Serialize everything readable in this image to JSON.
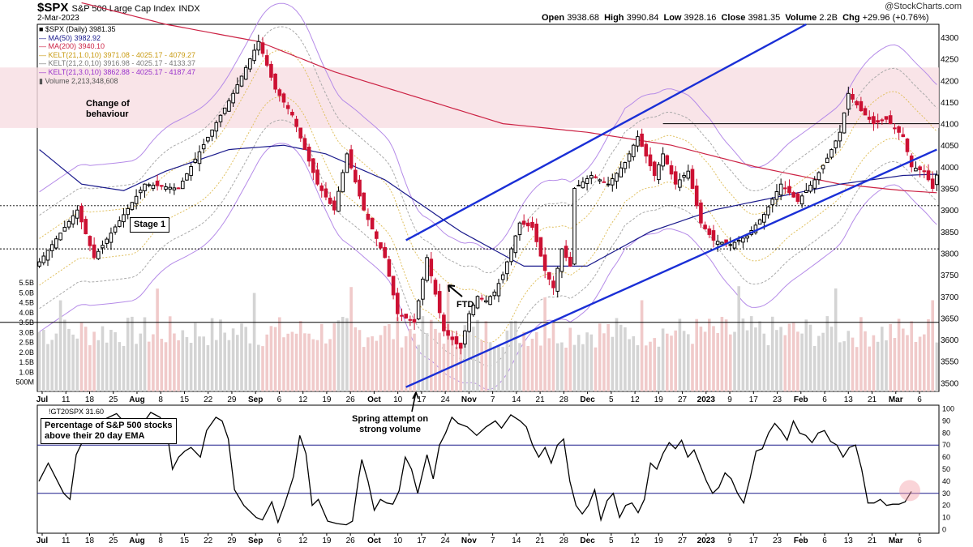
{
  "header": {
    "symbol": "$SPX",
    "name": "S&P 500 Large Cap Index",
    "exchange": "INDX",
    "date": "2-Mar-2023",
    "brand": "@StockCharts.com",
    "open_label": "Open",
    "open": "3938.68",
    "high_label": "High",
    "high": "3990.84",
    "low_label": "Low",
    "low": "3928.16",
    "close_label": "Close",
    "close": "3981.35",
    "volume_label": "Volume",
    "volume": "2.2B",
    "chg_label": "Chg",
    "chg": "+29.96 (+0.76%)"
  },
  "legend": [
    {
      "text": "$SPX (Daily) 3981.35",
      "color": "#000000"
    },
    {
      "text": "MA(50) 3982.92",
      "color": "#1a1a8c"
    },
    {
      "text": "MA(200) 3940.10",
      "color": "#cc2244"
    },
    {
      "text": "KELT(21,1.0,10) 3971.08 - 4025.17 - 4079.27",
      "color": "#d4a017"
    },
    {
      "text": "KELT(21,2.0,10) 3916.98 - 4025.17 - 4133.37",
      "color": "#888888"
    },
    {
      "text": "KELT(21,3.0,10) 3862.88 - 4025.17 - 4187.47",
      "color": "#9932cc"
    },
    {
      "text": "Volume 2,213,348,608",
      "color": "#555555"
    }
  ],
  "annotations": {
    "change_behaviour": "Change of\nbehaviour",
    "stage1": "Stage 1",
    "ftd": "FTD",
    "spring": "Spring attempt on\nstrong volume",
    "breadth_box": "Percentage of S&P 500 stocks\nabove their 20 day EMA"
  },
  "colors": {
    "up": "#000000",
    "down": "#cc1133",
    "ma50": "#1a1a8c",
    "ma200": "#cc2244",
    "channel": "#1a2fd6",
    "kelt1": "#e0c060",
    "kelt2": "#aaaaaa",
    "kelt3": "#b58be8",
    "zone": "#f7dde2",
    "vol_up": "#d4d4d4",
    "vol_down": "#f0caca"
  },
  "chart_data": [
    {
      "type": "candlestick",
      "title": "$SPX S&P 500 Large Cap Index",
      "y_axis_side": "right",
      "ylim": [
        3480,
        4330
      ],
      "yticks": [
        3500,
        3550,
        3600,
        3650,
        3700,
        3750,
        3800,
        3850,
        3900,
        3950,
        4000,
        4050,
        4100,
        4150,
        4200,
        4250,
        4300
      ],
      "volume_ticks": [
        "500M",
        "1.0B",
        "1.5B",
        "2.0B",
        "2.5B",
        "3.0B",
        "3.5B",
        "4.0B",
        "4.5B",
        "5.0B",
        "5.5B"
      ],
      "xticks": [
        "Jul",
        "11",
        "18",
        "25",
        "Aug",
        "8",
        "15",
        "22",
        "29",
        "Sep",
        "6",
        "12",
        "19",
        "26",
        "Oct",
        "10",
        "17",
        "24",
        "Nov",
        "7",
        "14",
        "21",
        "28",
        "Dec",
        "5",
        "12",
        "19",
        "27",
        "2023",
        "9",
        "17",
        "23",
        "Feb",
        "6",
        "13",
        "21",
        "Mar",
        "6"
      ],
      "horizontal_lines": [
        3810,
        4100,
        3910,
        3640
      ],
      "resistance_zone": [
        4090,
        4230
      ],
      "anchors": [
        {
          "x": 0,
          "y": 3780
        },
        {
          "x": 9,
          "y": 3900
        },
        {
          "x": 13,
          "y": 3790
        },
        {
          "x": 25,
          "y": 3960
        },
        {
          "x": 33,
          "y": 3950
        },
        {
          "x": 46,
          "y": 4170
        },
        {
          "x": 52,
          "y": 4290
        },
        {
          "x": 56,
          "y": 4180
        },
        {
          "x": 60,
          "y": 4120
        },
        {
          "x": 66,
          "y": 3960
        },
        {
          "x": 70,
          "y": 3900
        },
        {
          "x": 73,
          "y": 4030
        },
        {
          "x": 77,
          "y": 3900
        },
        {
          "x": 82,
          "y": 3790
        },
        {
          "x": 85,
          "y": 3660
        },
        {
          "x": 89,
          "y": 3640
        },
        {
          "x": 92,
          "y": 3790
        },
        {
          "x": 96,
          "y": 3620
        },
        {
          "x": 99,
          "y": 3590
        },
        {
          "x": 100,
          "y": 3580
        },
        {
          "x": 102,
          "y": 3660
        },
        {
          "x": 104,
          "y": 3700
        },
        {
          "x": 106,
          "y": 3690
        },
        {
          "x": 108,
          "y": 3710
        },
        {
          "x": 110,
          "y": 3750
        },
        {
          "x": 114,
          "y": 3870
        },
        {
          "x": 117,
          "y": 3860
        },
        {
          "x": 120,
          "y": 3760
        },
        {
          "x": 122,
          "y": 3720
        },
        {
          "x": 124,
          "y": 3810
        },
        {
          "x": 126,
          "y": 3770
        },
        {
          "x": 127,
          "y": 3950
        },
        {
          "x": 131,
          "y": 3980
        },
        {
          "x": 135,
          "y": 3960
        },
        {
          "x": 139,
          "y": 4010
        },
        {
          "x": 142,
          "y": 4070
        },
        {
          "x": 146,
          "y": 3980
        },
        {
          "x": 148,
          "y": 4030
        },
        {
          "x": 151,
          "y": 3960
        },
        {
          "x": 154,
          "y": 3990
        },
        {
          "x": 157,
          "y": 3870
        },
        {
          "x": 160,
          "y": 3830
        },
        {
          "x": 164,
          "y": 3820
        },
        {
          "x": 168,
          "y": 3840
        },
        {
          "x": 172,
          "y": 3890
        },
        {
          "x": 176,
          "y": 3960
        },
        {
          "x": 180,
          "y": 3920
        },
        {
          "x": 184,
          "y": 3970
        },
        {
          "x": 187,
          "y": 4020
        },
        {
          "x": 190,
          "y": 4080
        },
        {
          "x": 192,
          "y": 4170
        },
        {
          "x": 195,
          "y": 4130
        },
        {
          "x": 198,
          "y": 4100
        },
        {
          "x": 201,
          "y": 4110
        },
        {
          "x": 205,
          "y": 4070
        },
        {
          "x": 207,
          "y": 4000
        },
        {
          "x": 210,
          "y": 3990
        },
        {
          "x": 212,
          "y": 3950
        },
        {
          "x": 213,
          "y": 3981
        }
      ],
      "ma50_points": [
        {
          "x": 0,
          "y": 4040
        },
        {
          "x": 10,
          "y": 3960
        },
        {
          "x": 20,
          "y": 3945
        },
        {
          "x": 30,
          "y": 3990
        },
        {
          "x": 45,
          "y": 4040
        },
        {
          "x": 58,
          "y": 4050
        },
        {
          "x": 68,
          "y": 4030
        },
        {
          "x": 82,
          "y": 3970
        },
        {
          "x": 100,
          "y": 3850
        },
        {
          "x": 115,
          "y": 3770
        },
        {
          "x": 130,
          "y": 3770
        },
        {
          "x": 145,
          "y": 3850
        },
        {
          "x": 160,
          "y": 3900
        },
        {
          "x": 175,
          "y": 3930
        },
        {
          "x": 190,
          "y": 3960
        },
        {
          "x": 205,
          "y": 3980
        },
        {
          "x": 213,
          "y": 3983
        }
      ],
      "ma200_points": [
        {
          "x": 10,
          "y": 4380
        },
        {
          "x": 30,
          "y": 4330
        },
        {
          "x": 52,
          "y": 4290
        },
        {
          "x": 70,
          "y": 4220
        },
        {
          "x": 90,
          "y": 4160
        },
        {
          "x": 110,
          "y": 4100
        },
        {
          "x": 130,
          "y": 4080
        },
        {
          "x": 150,
          "y": 4050
        },
        {
          "x": 170,
          "y": 4000
        },
        {
          "x": 190,
          "y": 3960
        },
        {
          "x": 205,
          "y": 3945
        },
        {
          "x": 213,
          "y": 3940
        }
      ],
      "channel_lines": [
        {
          "from": {
            "x": 87,
            "y": 3830
          },
          "to": {
            "x": 182,
            "y": 4330
          }
        },
        {
          "from": {
            "x": 87,
            "y": 3490
          },
          "to": {
            "x": 213,
            "y": 4040
          }
        }
      ]
    },
    {
      "type": "line",
      "title": "!GT20SPX 31.60",
      "y_axis_side": "right",
      "ylim": [
        -3,
        103
      ],
      "yticks": [
        0,
        10,
        20,
        30,
        40,
        50,
        60,
        70,
        80,
        90,
        100
      ],
      "reference_lines": [
        70,
        30
      ],
      "last_value": 31.6,
      "points": [
        {
          "x": 0,
          "y": 40
        },
        {
          "x": 3,
          "y": 55
        },
        {
          "x": 6,
          "y": 40
        },
        {
          "x": 8,
          "y": 30
        },
        {
          "x": 10,
          "y": 25
        },
        {
          "x": 12,
          "y": 62
        },
        {
          "x": 15,
          "y": 78
        },
        {
          "x": 20,
          "y": 90
        },
        {
          "x": 25,
          "y": 96
        },
        {
          "x": 30,
          "y": 82
        },
        {
          "x": 33,
          "y": 86
        },
        {
          "x": 36,
          "y": 97
        },
        {
          "x": 39,
          "y": 93
        },
        {
          "x": 41,
          "y": 85
        },
        {
          "x": 43,
          "y": 50
        },
        {
          "x": 45,
          "y": 60
        },
        {
          "x": 47,
          "y": 65
        },
        {
          "x": 49,
          "y": 68
        },
        {
          "x": 52,
          "y": 60
        },
        {
          "x": 54,
          "y": 82
        },
        {
          "x": 57,
          "y": 93
        },
        {
          "x": 59,
          "y": 90
        },
        {
          "x": 61,
          "y": 75
        },
        {
          "x": 63,
          "y": 33
        },
        {
          "x": 66,
          "y": 20
        },
        {
          "x": 70,
          "y": 10
        },
        {
          "x": 72,
          "y": 8
        },
        {
          "x": 75,
          "y": 23
        },
        {
          "x": 77,
          "y": 6
        },
        {
          "x": 79,
          "y": 20
        },
        {
          "x": 82,
          "y": 44
        },
        {
          "x": 84,
          "y": 78
        },
        {
          "x": 86,
          "y": 63
        },
        {
          "x": 88,
          "y": 20
        },
        {
          "x": 90,
          "y": 25
        },
        {
          "x": 93,
          "y": 7
        },
        {
          "x": 96,
          "y": 5
        },
        {
          "x": 99,
          "y": 4
        },
        {
          "x": 101,
          "y": 7
        },
        {
          "x": 103,
          "y": 43
        },
        {
          "x": 104,
          "y": 58
        },
        {
          "x": 106,
          "y": 40
        },
        {
          "x": 108,
          "y": 16
        },
        {
          "x": 110,
          "y": 25
        },
        {
          "x": 112,
          "y": 22
        },
        {
          "x": 114,
          "y": 21
        },
        {
          "x": 116,
          "y": 32
        },
        {
          "x": 118,
          "y": 60
        },
        {
          "x": 120,
          "y": 50
        },
        {
          "x": 122,
          "y": 30
        },
        {
          "x": 125,
          "y": 62
        },
        {
          "x": 127,
          "y": 42
        },
        {
          "x": 129,
          "y": 70
        },
        {
          "x": 131,
          "y": 80
        },
        {
          "x": 133,
          "y": 93
        },
        {
          "x": 135,
          "y": 88
        },
        {
          "x": 138,
          "y": 85
        },
        {
          "x": 141,
          "y": 78
        },
        {
          "x": 144,
          "y": 85
        },
        {
          "x": 147,
          "y": 90
        },
        {
          "x": 149,
          "y": 84
        },
        {
          "x": 152,
          "y": 95
        },
        {
          "x": 155,
          "y": 90
        },
        {
          "x": 157,
          "y": 85
        },
        {
          "x": 159,
          "y": 70
        },
        {
          "x": 161,
          "y": 60
        },
        {
          "x": 163,
          "y": 68
        },
        {
          "x": 165,
          "y": 55
        },
        {
          "x": 167,
          "y": 70
        },
        {
          "x": 169,
          "y": 75
        },
        {
          "x": 171,
          "y": 40
        },
        {
          "x": 173,
          "y": 20
        },
        {
          "x": 175,
          "y": 13
        },
        {
          "x": 177,
          "y": 20
        },
        {
          "x": 179,
          "y": 33
        },
        {
          "x": 181,
          "y": 8
        },
        {
          "x": 183,
          "y": 24
        },
        {
          "x": 185,
          "y": 30
        },
        {
          "x": 187,
          "y": 10
        },
        {
          "x": 189,
          "y": 20
        },
        {
          "x": 191,
          "y": 22
        },
        {
          "x": 193,
          "y": 14
        },
        {
          "x": 195,
          "y": 25
        },
        {
          "x": 197,
          "y": 55
        },
        {
          "x": 199,
          "y": 50
        },
        {
          "x": 201,
          "y": 63
        },
        {
          "x": 203,
          "y": 72
        },
        {
          "x": 205,
          "y": 67
        },
        {
          "x": 207,
          "y": 74
        },
        {
          "x": 209,
          "y": 60
        },
        {
          "x": 211,
          "y": 66
        },
        {
          "x": 213,
          "y": 53
        },
        {
          "x": 215,
          "y": 40
        },
        {
          "x": 217,
          "y": 30
        },
        {
          "x": 219,
          "y": 35
        },
        {
          "x": 221,
          "y": 47
        },
        {
          "x": 223,
          "y": 42
        },
        {
          "x": 225,
          "y": 30
        },
        {
          "x": 227,
          "y": 22
        },
        {
          "x": 229,
          "y": 42
        },
        {
          "x": 231,
          "y": 65
        },
        {
          "x": 233,
          "y": 67
        },
        {
          "x": 235,
          "y": 80
        },
        {
          "x": 237,
          "y": 88
        },
        {
          "x": 239,
          "y": 82
        },
        {
          "x": 241,
          "y": 74
        },
        {
          "x": 243,
          "y": 90
        },
        {
          "x": 245,
          "y": 80
        },
        {
          "x": 247,
          "y": 78
        },
        {
          "x": 249,
          "y": 72
        },
        {
          "x": 251,
          "y": 80
        },
        {
          "x": 253,
          "y": 82
        },
        {
          "x": 255,
          "y": 73
        },
        {
          "x": 257,
          "y": 70
        },
        {
          "x": 259,
          "y": 60
        },
        {
          "x": 261,
          "y": 68
        },
        {
          "x": 263,
          "y": 70
        },
        {
          "x": 265,
          "y": 50
        },
        {
          "x": 267,
          "y": 22
        },
        {
          "x": 269,
          "y": 22
        },
        {
          "x": 271,
          "y": 25
        },
        {
          "x": 273,
          "y": 20
        },
        {
          "x": 275,
          "y": 21
        },
        {
          "x": 277,
          "y": 21
        },
        {
          "x": 279,
          "y": 23
        },
        {
          "x": 281,
          "y": 31.6
        }
      ]
    }
  ]
}
